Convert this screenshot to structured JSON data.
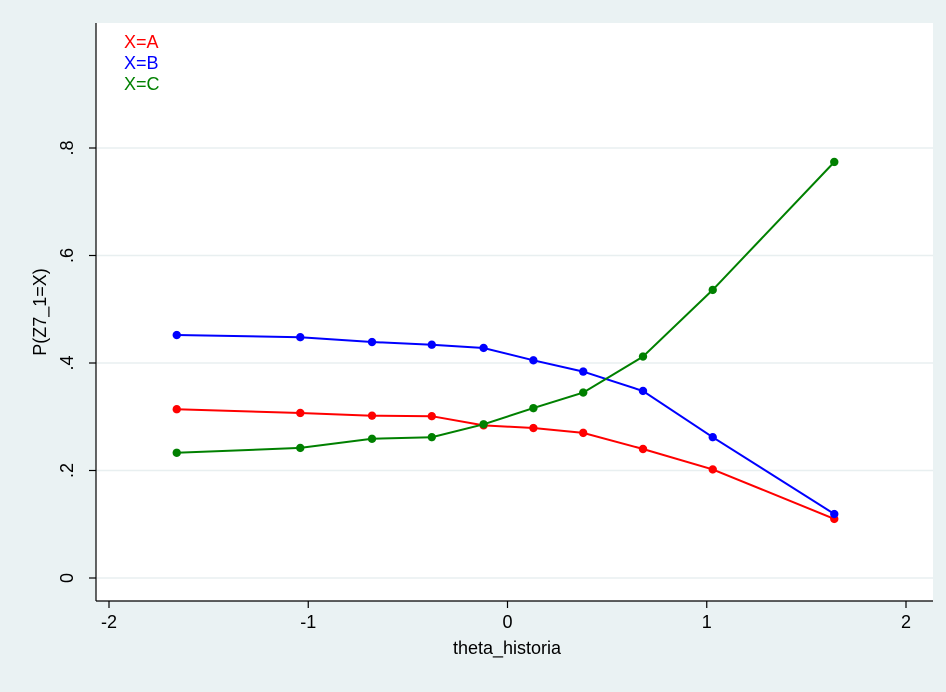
{
  "chart_data": {
    "type": "line",
    "title": "",
    "xlabel": "theta_historia",
    "ylabel": "P(Z7_1=X)",
    "xlim": [
      -2,
      2
    ],
    "ylim": [
      0,
      1
    ],
    "x_ticks": [
      -2,
      -1,
      0,
      1,
      2
    ],
    "x_tick_labels": [
      "-2",
      "-1",
      "0",
      "1",
      "2"
    ],
    "y_ticks": [
      0,
      0.2,
      0.4,
      0.6,
      0.8
    ],
    "y_tick_labels": [
      "0",
      ".2",
      ".4",
      ".6",
      ".8"
    ],
    "grid": true,
    "legend_position": "top-left",
    "x": [
      -1.66,
      -1.04,
      -0.68,
      -0.38,
      -0.12,
      0.13,
      0.38,
      0.68,
      1.03,
      1.64
    ],
    "series": [
      {
        "name": "X=A",
        "color": "#ff0000",
        "values": [
          0.314,
          0.307,
          0.302,
          0.301,
          0.284,
          0.279,
          0.27,
          0.24,
          0.202,
          0.11
        ]
      },
      {
        "name": "X=B",
        "color": "#0000ff",
        "values": [
          0.452,
          0.448,
          0.439,
          0.434,
          0.428,
          0.405,
          0.384,
          0.348,
          0.262,
          0.119
        ]
      },
      {
        "name": "X=C",
        "color": "#008000",
        "values": [
          0.233,
          0.242,
          0.259,
          0.262,
          0.286,
          0.316,
          0.345,
          0.412,
          0.536,
          0.774
        ]
      }
    ]
  }
}
